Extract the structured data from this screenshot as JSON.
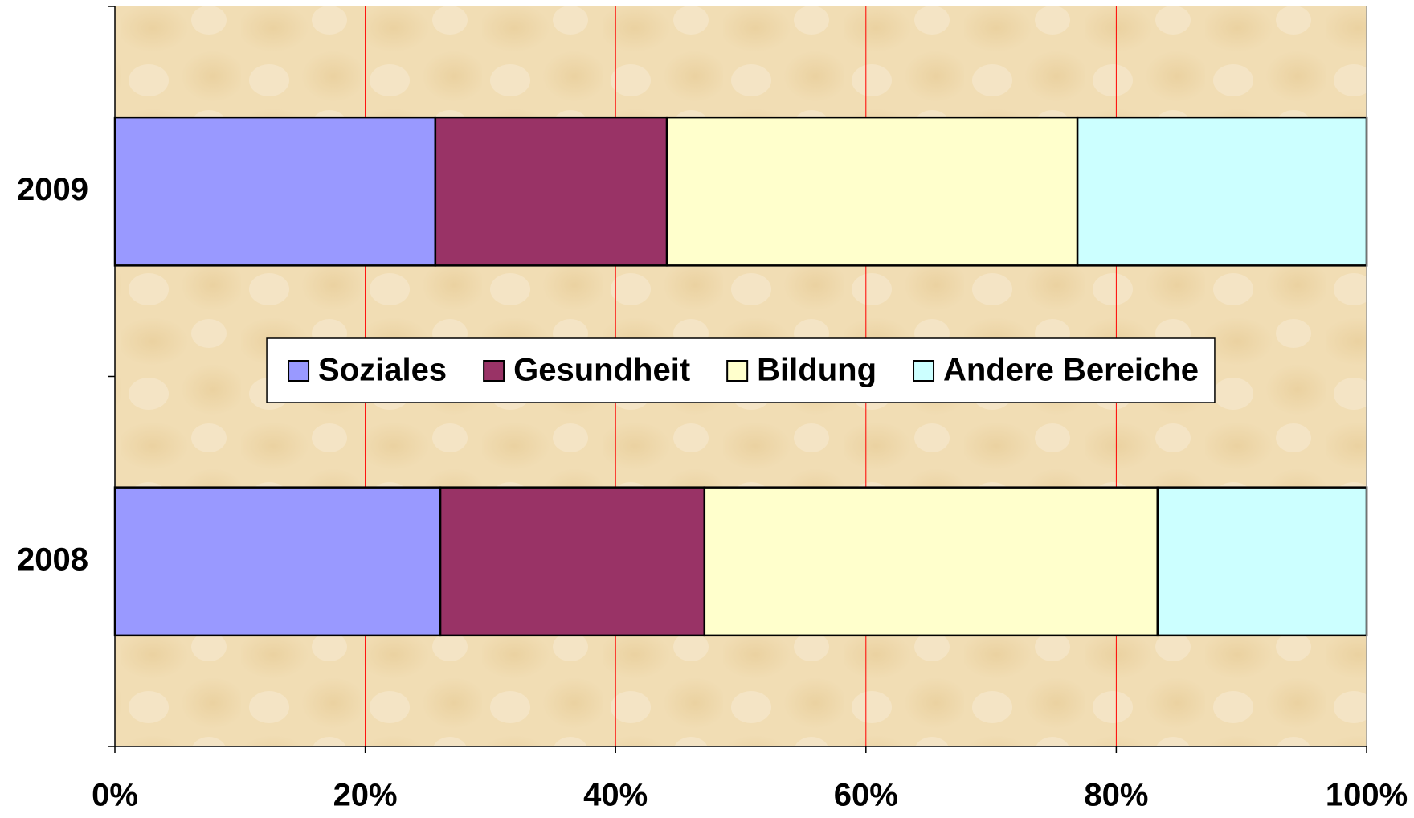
{
  "chart_data": {
    "type": "stacked-bar-horizontal",
    "categories": [
      "2008",
      "2009"
    ],
    "series": [
      {
        "name": "Soziales",
        "color": "#9999ff",
        "values": [
          26.0,
          25.6
        ]
      },
      {
        "name": "Gesundheit",
        "color": "#993366",
        "values": [
          21.1,
          18.5
        ]
      },
      {
        "name": "Bildung",
        "color": "#ffffcc",
        "values": [
          36.2,
          32.8
        ]
      },
      {
        "name": "Andere Bereiche",
        "color": "#ccffff",
        "values": [
          16.7,
          23.1
        ]
      }
    ],
    "xlim": [
      0,
      100
    ],
    "xticks": [
      {
        "value": 0,
        "label": "0%"
      },
      {
        "value": 20,
        "label": "20%"
      },
      {
        "value": 40,
        "label": "40%"
      },
      {
        "value": 60,
        "label": "60%"
      },
      {
        "value": 80,
        "label": "80%"
      },
      {
        "value": 100,
        "label": "100%"
      }
    ],
    "grid": true,
    "grid_color": "#ff0000",
    "legend": "center"
  }
}
